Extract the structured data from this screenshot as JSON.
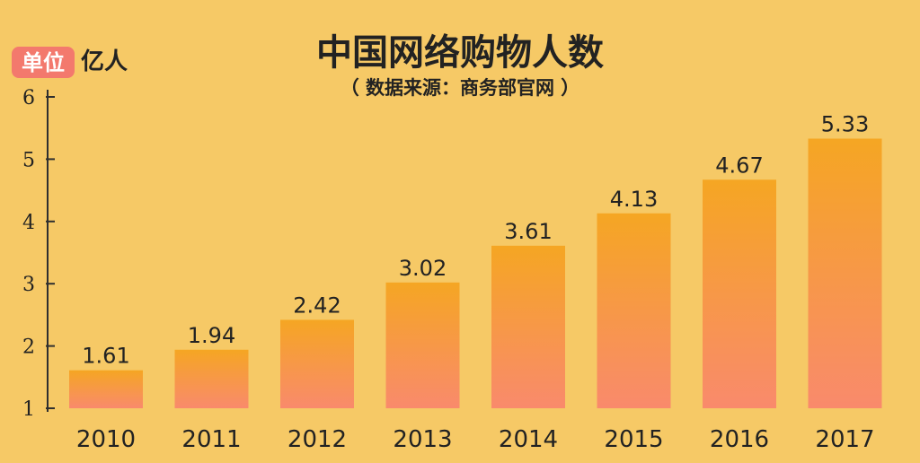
{
  "chart_data": {
    "type": "bar",
    "title": "中国网络购物人数",
    "subtitle": "（ 数据来源：商务部官网 ）",
    "unit_badge": "单位",
    "unit": "亿人",
    "categories": [
      "2010",
      "2011",
      "2012",
      "2013",
      "2014",
      "2015",
      "2016",
      "2017"
    ],
    "values": [
      1.61,
      1.94,
      2.42,
      3.02,
      3.61,
      4.13,
      4.67,
      5.33
    ],
    "value_labels": [
      "1.61",
      "1.94",
      "2.42",
      "3.02",
      "3.61",
      "4.13",
      "4.67",
      "5.33"
    ],
    "yticks": [
      "1",
      "2",
      "3",
      "4",
      "5",
      "6"
    ],
    "ylim": [
      1,
      6
    ],
    "grid": false,
    "colors": {
      "background": "#f6c966",
      "bar_top": "#f5a623",
      "bar_bottom": "#f98a6c",
      "badge": "#f3796d",
      "axis": "#2f2f2f",
      "text": "#222222"
    }
  }
}
